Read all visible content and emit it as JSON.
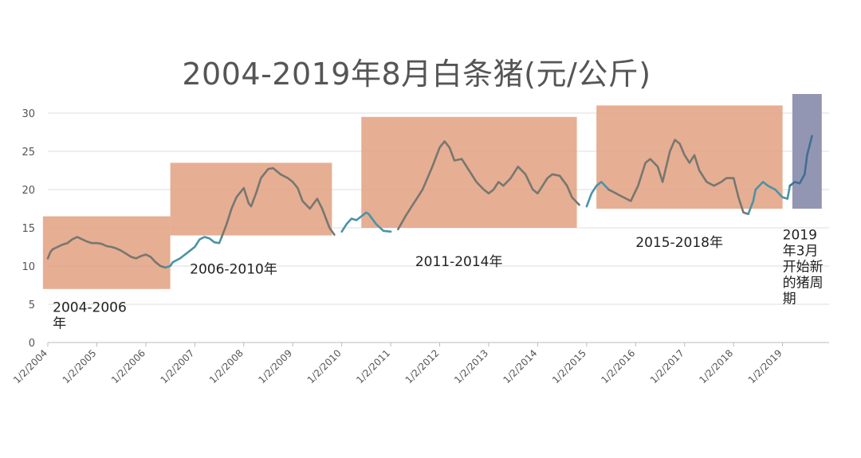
{
  "chart_data": {
    "type": "line",
    "title": "2004-2019年8月白条猪(元/公斤)",
    "xlabel": "",
    "ylabel": "",
    "ylim": [
      0,
      30
    ],
    "yticks": [
      "0",
      "5",
      "10",
      "15",
      "20",
      "25",
      "30"
    ],
    "xticks": [
      "1/2/2004",
      "1/2/2005",
      "1/2/2006",
      "1/2/2007",
      "1/2/2008",
      "1/2/2009",
      "1/2/2010",
      "1/2/2011",
      "1/2/2012",
      "1/2/2013",
      "1/2/2014",
      "1/2/2015",
      "1/2/2016",
      "1/2/2017",
      "1/2/2018",
      "1/2/2019"
    ],
    "grid": true,
    "legend": "none",
    "colors": {
      "grey_line": "#777770",
      "teal_line": "#4a93a6",
      "blue_line": "#3f6f95",
      "period_box": "#e3a587",
      "new_box": "#8d90ae"
    },
    "series": [
      {
        "x": [
          2004.0,
          2004.05,
          2004.1,
          2004.2,
          2004.3,
          2004.4,
          2004.5,
          2004.6,
          2004.7,
          2004.8,
          2004.9,
          2005.0,
          2005.1,
          2005.2,
          2005.3,
          2005.4,
          2005.5,
          2005.6,
          2005.7,
          2005.8,
          2005.9,
          2006.0,
          2006.1,
          2006.2,
          2006.3,
          2006.4,
          2006.5,
          2006.55,
          2006.7,
          2006.8,
          2006.9,
          2007.0,
          2007.1,
          2007.2,
          2007.3,
          2007.4,
          2007.5,
          2007.55,
          2007.65,
          2007.75,
          2007.85,
          2008.0,
          2008.1,
          2008.15,
          2008.25,
          2008.35,
          2008.5,
          2008.6,
          2008.75,
          2008.9,
          2009.0,
          2009.1,
          2009.2,
          2009.35,
          2009.5,
          2009.6,
          2009.75,
          2009.85,
          2010.0,
          2010.1,
          2010.2,
          2010.3,
          2010.4,
          2010.5,
          2010.55,
          2010.7,
          2010.85,
          2011.0,
          2011.15,
          2011.3,
          2011.45,
          2011.55,
          2011.65,
          2011.75,
          2011.85,
          2012.0,
          2012.1,
          2012.2,
          2012.3,
          2012.45,
          2012.6,
          2012.75,
          2012.9,
          2013.0,
          2013.1,
          2013.2,
          2013.3,
          2013.45,
          2013.6,
          2013.75,
          2013.9,
          2014.0,
          2014.1,
          2014.2,
          2014.3,
          2014.45,
          2014.6,
          2014.7,
          2014.85,
          2015.0,
          2015.1,
          2015.2,
          2015.3,
          2015.45,
          2015.6,
          2015.75,
          2015.9,
          2016.05,
          2016.2,
          2016.3,
          2016.45,
          2016.55,
          2016.7,
          2016.8,
          2016.9,
          2017.0,
          2017.1,
          2017.2,
          2017.3,
          2017.45,
          2017.6,
          2017.75,
          2017.85,
          2018.0,
          2018.1,
          2018.2,
          2018.3,
          2018.4,
          2018.45,
          2018.6,
          2018.7,
          2018.85,
          2019.0,
          2019.1,
          2019.15,
          2019.25,
          2019.35,
          2019.45,
          2019.5,
          2019.6
        ],
        "y": [
          11.0,
          11.8,
          12.2,
          12.5,
          12.8,
          13.0,
          13.5,
          13.8,
          13.5,
          13.2,
          13.0,
          13.0,
          12.9,
          12.6,
          12.5,
          12.3,
          12.0,
          11.6,
          11.2,
          11.0,
          11.3,
          11.5,
          11.2,
          10.5,
          10.0,
          9.8,
          10.0,
          10.5,
          11.0,
          11.5,
          12.0,
          12.5,
          13.5,
          13.8,
          13.6,
          13.1,
          13.0,
          13.8,
          15.5,
          17.5,
          19.0,
          20.2,
          18.2,
          17.8,
          19.5,
          21.5,
          22.7,
          22.8,
          22.0,
          21.5,
          21.0,
          20.2,
          18.5,
          17.5,
          18.8,
          17.5,
          15.0,
          14.1,
          14.5,
          15.5,
          16.2,
          16.0,
          16.5,
          17.0,
          16.8,
          15.5,
          14.6,
          14.5,
          14.8,
          16.5,
          18.0,
          19.0,
          20.0,
          21.5,
          23.0,
          25.5,
          26.3,
          25.5,
          23.8,
          24.0,
          22.5,
          21.0,
          20.0,
          19.5,
          20.0,
          21.0,
          20.5,
          21.5,
          23.0,
          22.0,
          20.0,
          19.5,
          20.5,
          21.5,
          22.0,
          21.8,
          20.5,
          19.0,
          18.0,
          17.8,
          19.5,
          20.5,
          21.0,
          20.0,
          19.5,
          19.0,
          18.5,
          20.5,
          23.5,
          24.0,
          23.0,
          21.0,
          25.0,
          26.5,
          26.0,
          24.5,
          23.5,
          24.5,
          22.5,
          21.0,
          20.5,
          21.0,
          21.5,
          21.5,
          19.0,
          17.0,
          16.8,
          18.5,
          20.0,
          21.0,
          20.5,
          20.0,
          19.0,
          18.8,
          20.5,
          21.0,
          20.8,
          22.0,
          24.5,
          27.0
        ]
      }
    ],
    "segments": [
      {
        "x_from": 2004.0,
        "x_to": 2006.4,
        "color": "grey_line"
      },
      {
        "x_from": 2006.4,
        "x_to": 2007.55,
        "color": "teal_line"
      },
      {
        "x_from": 2007.55,
        "x_to": 2009.9,
        "color": "grey_line"
      },
      {
        "x_from": 2009.9,
        "x_to": 2011.1,
        "color": "teal_line"
      },
      {
        "x_from": 2011.1,
        "x_to": 2014.9,
        "color": "grey_line"
      },
      {
        "x_from": 2014.9,
        "x_to": 2015.45,
        "color": "teal_line"
      },
      {
        "x_from": 2015.45,
        "x_to": 2018.3,
        "color": "grey_line"
      },
      {
        "x_from": 2018.3,
        "x_to": 2019.15,
        "color": "teal_line"
      },
      {
        "x_from": 2019.15,
        "x_to": 2019.6,
        "color": "blue_line"
      }
    ],
    "periods": [
      {
        "x_from": 2003.9,
        "x_to": 2006.5,
        "y_from": 7.0,
        "y_to": 16.5,
        "color": "period_box",
        "label_lines": [
          "2004-2006",
          "年"
        ],
        "label_anchor_x": 2004.1,
        "label_anchor_y": 4.0
      },
      {
        "x_from": 2006.5,
        "x_to": 2009.8,
        "y_from": 14.0,
        "y_to": 23.5,
        "color": "period_box",
        "label_lines": [
          "2006-2010年"
        ],
        "label_anchor_x": 2006.9,
        "label_anchor_y": 9.0
      },
      {
        "x_from": 2010.4,
        "x_to": 2014.8,
        "y_from": 15.0,
        "y_to": 29.5,
        "color": "period_box",
        "label_lines": [
          "2011-2014年"
        ],
        "label_anchor_x": 2011.5,
        "label_anchor_y": 10.0
      },
      {
        "x_from": 2015.2,
        "x_to": 2019.0,
        "y_from": 17.5,
        "y_to": 31.0,
        "color": "period_box",
        "label_lines": [
          "2015-2018年"
        ],
        "label_anchor_x": 2016.0,
        "label_anchor_y": 12.5
      },
      {
        "x_from": 2019.2,
        "x_to": 2019.8,
        "y_from": 17.5,
        "y_to": 32.5,
        "color": "new_box",
        "label_lines": [
          "2019",
          "年3月",
          "开始新",
          "的猪周",
          "期"
        ],
        "label_anchor_x": 2019.0,
        "label_anchor_y": 13.5
      }
    ]
  }
}
